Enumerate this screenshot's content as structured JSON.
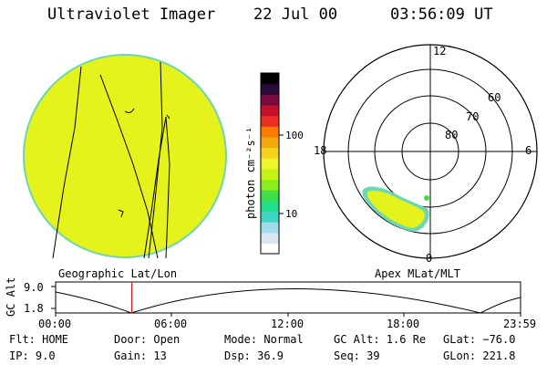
{
  "header": {
    "title": "Ultraviolet Imager",
    "date": "22 Jul 00",
    "time": "03:56:09 UT"
  },
  "left_panel": {
    "caption": "Geographic Lat/Lon"
  },
  "right_panel": {
    "caption": "Apex MLat/MLT",
    "mlt_labels": {
      "top": "12",
      "left": "18",
      "right": "6",
      "bottom": "0"
    },
    "lat_labels": [
      "60",
      "70",
      "80"
    ]
  },
  "colorbar": {
    "label": "photon cm⁻²s⁻¹",
    "tick_labels": [
      "100",
      "10"
    ],
    "colors": [
      "#ffffff",
      "#d9e6ee",
      "#9fdcec",
      "#3fd6c6",
      "#22e08a",
      "#3ee04a",
      "#8aee1e",
      "#c6f21a",
      "#eef52a",
      "#f5d21e",
      "#f5a80e",
      "#ff7a00",
      "#e8301e",
      "#c4102a",
      "#7a0a3e",
      "#2a0a3a",
      "#000000"
    ]
  },
  "altitude_plot": {
    "ylabel": "GC Alt",
    "y_ticks": [
      "9.0",
      "1.8"
    ],
    "time_ticks": [
      "00:00",
      "06:00",
      "12:00",
      "18:00",
      "23:59"
    ],
    "current_time_fraction": 0.164
  },
  "info": {
    "row1": {
      "flt": "Flt: HOME",
      "door": "Door: Open",
      "mode": "Mode: Normal",
      "gcalt": "GC Alt: 1.6 Re",
      "glat": "GLat: −76.0"
    },
    "row2": {
      "ip": "IP: 9.0",
      "gain": "Gain: 13",
      "dsp": "Dsp:  36.9",
      "seq": "Seq: 39",
      "glon": "GLon: 221.8"
    }
  }
}
